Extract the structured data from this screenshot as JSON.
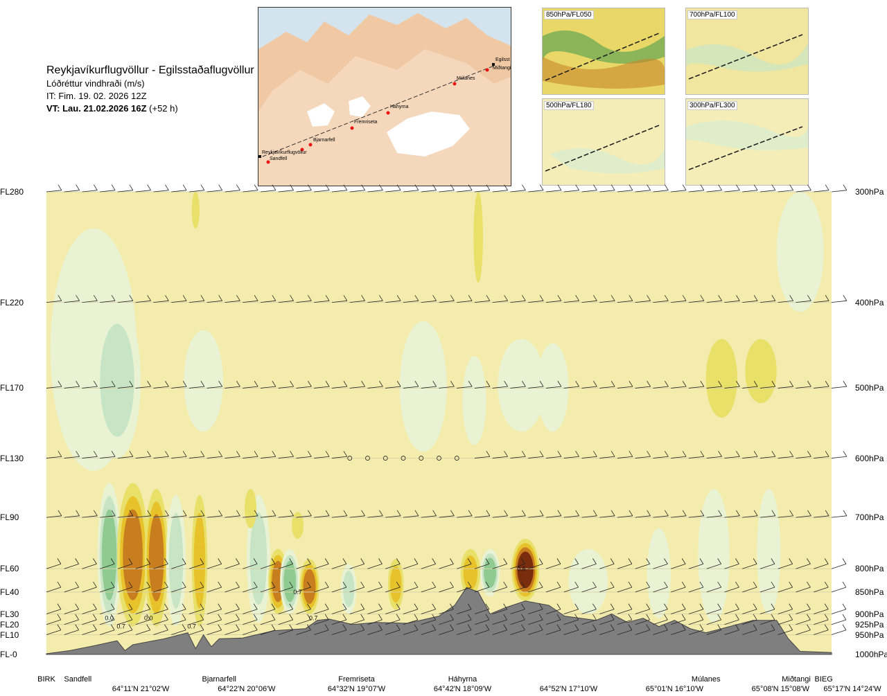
{
  "titles": {
    "line1": "Reykjavíkurflugvöllur - Egilsstaðaflugvöllur",
    "line2": "Lóðréttur vindhraði (m/s)",
    "line3": "IT: Fim. 19. 02. 2026 12Z",
    "line4_bold": "VT: Lau. 21.02.2026 16Z",
    "line4_rest": " (+52 h)"
  },
  "map": {
    "points": [
      "Reykjavíkurflugvöllur",
      "Sandfell",
      "Bjarnarfell",
      "Fremriseta",
      "Háhyrna",
      "Múlanes",
      "Miðtangi",
      "Egilsst"
    ]
  },
  "insets": [
    "850hPa/FL050",
    "700hPa/FL100",
    "500hPa/FL180",
    "300hPa/FL300"
  ],
  "chart_data": {
    "type": "heatmap",
    "title": "Lóðréttur vindhraði (m/s)",
    "levels": [
      {
        "fl": "FL280",
        "hpa": "300hPa",
        "p": 300
      },
      {
        "fl": "FL220",
        "hpa": "400hPa",
        "p": 400
      },
      {
        "fl": "FL170",
        "hpa": "500hPa",
        "p": 500
      },
      {
        "fl": "FL130",
        "hpa": "600hPa",
        "p": 600
      },
      {
        "fl": "FL90",
        "hpa": "700hPa",
        "p": 700
      },
      {
        "fl": "FL60",
        "hpa": "800hPa",
        "p": 800
      },
      {
        "fl": "FL40",
        "hpa": "850hPa",
        "p": 850
      },
      {
        "fl": "FL30",
        "hpa": "900hPa",
        "p": 900
      },
      {
        "fl": "FL20",
        "hpa": "925hPa",
        "p": 925
      },
      {
        "fl": "FL10",
        "hpa": "950hPa",
        "p": 950
      },
      {
        "fl": "FL-0",
        "hpa": "1000hPa",
        "p": 1000
      }
    ],
    "stations": [
      {
        "name": "BIRK",
        "d": 0.0
      },
      {
        "name": "Sandfell",
        "d": 0.04
      },
      {
        "name": "Bjarnarfell",
        "d": 0.22
      },
      {
        "name": "Fremriseta",
        "d": 0.395
      },
      {
        "name": "Háhyrna",
        "d": 0.53
      },
      {
        "name": "Múlanes",
        "d": 0.84
      },
      {
        "name": "Miðtangi",
        "d": 0.955
      },
      {
        "name": "BIEG",
        "d": 0.99
      }
    ],
    "coords": [
      {
        "label": "64°11'N 21°02'W",
        "d": 0.12
      },
      {
        "label": "64°22'N 20°06'W",
        "d": 0.255
      },
      {
        "label": "64°32'N 19°07'W",
        "d": 0.395
      },
      {
        "label": "64°42'N 18°09'W",
        "d": 0.53
      },
      {
        "label": "64°52'N 17°10'W",
        "d": 0.665
      },
      {
        "label": "65°01'N 16°10'W",
        "d": 0.8
      },
      {
        "label": "65°08'N 15°08'W",
        "d": 0.935
      },
      {
        "label": "65°17'N 14°24'W",
        "d": 1.04
      }
    ],
    "cell_labels": [
      {
        "text": "0.7",
        "d": 0.095,
        "p": 935
      },
      {
        "text": "0.0",
        "d": 0.08,
        "p": 915
      },
      {
        "text": "0.0",
        "d": 0.13,
        "p": 915
      },
      {
        "text": "0.7",
        "d": 0.185,
        "p": 935
      },
      {
        "text": "0.7",
        "d": 0.32,
        "p": 855
      },
      {
        "text": "0.7",
        "d": 0.34,
        "p": 915
      },
      {
        "text": "0.6",
        "d": 0.605,
        "p": 805
      }
    ],
    "terrain": [
      {
        "d": 0.0,
        "p": 998
      },
      {
        "d": 0.03,
        "p": 990
      },
      {
        "d": 0.06,
        "p": 978
      },
      {
        "d": 0.09,
        "p": 965
      },
      {
        "d": 0.1,
        "p": 990
      },
      {
        "d": 0.11,
        "p": 975
      },
      {
        "d": 0.15,
        "p": 960
      },
      {
        "d": 0.18,
        "p": 945
      },
      {
        "d": 0.19,
        "p": 985
      },
      {
        "d": 0.2,
        "p": 950
      },
      {
        "d": 0.21,
        "p": 980
      },
      {
        "d": 0.22,
        "p": 960
      },
      {
        "d": 0.25,
        "p": 958
      },
      {
        "d": 0.29,
        "p": 940
      },
      {
        "d": 0.33,
        "p": 935
      },
      {
        "d": 0.345,
        "p": 915
      },
      {
        "d": 0.36,
        "p": 912
      },
      {
        "d": 0.39,
        "p": 925
      },
      {
        "d": 0.42,
        "p": 920
      },
      {
        "d": 0.46,
        "p": 922
      },
      {
        "d": 0.5,
        "p": 905
      },
      {
        "d": 0.52,
        "p": 880
      },
      {
        "d": 0.535,
        "p": 840
      },
      {
        "d": 0.55,
        "p": 850
      },
      {
        "d": 0.565,
        "p": 900
      },
      {
        "d": 0.585,
        "p": 885
      },
      {
        "d": 0.61,
        "p": 870
      },
      {
        "d": 0.64,
        "p": 880
      },
      {
        "d": 0.66,
        "p": 905
      },
      {
        "d": 0.7,
        "p": 915
      },
      {
        "d": 0.72,
        "p": 900
      },
      {
        "d": 0.74,
        "p": 920
      },
      {
        "d": 0.76,
        "p": 910
      },
      {
        "d": 0.78,
        "p": 930
      },
      {
        "d": 0.8,
        "p": 915
      },
      {
        "d": 0.82,
        "p": 935
      },
      {
        "d": 0.84,
        "p": 945
      },
      {
        "d": 0.86,
        "p": 935
      },
      {
        "d": 0.88,
        "p": 925
      },
      {
        "d": 0.9,
        "p": 915
      },
      {
        "d": 0.93,
        "p": 915
      },
      {
        "d": 0.945,
        "p": 960
      },
      {
        "d": 0.96,
        "p": 992
      },
      {
        "d": 1.0,
        "p": 995
      }
    ],
    "calm_points": [
      0.38,
      0.4,
      0.42,
      0.44,
      0.46,
      0.48,
      0.5,
      0.52
    ],
    "colors": {
      "background": "#f3ecac",
      "sink_weak": "#e9f3d4",
      "sink": "#c7e5c5",
      "sink_mid": "#8fcb91",
      "sink_strong": "#2b8a3a",
      "rise_weak": "#e8e068",
      "rise": "#e8c22a",
      "rise_mid": "#c87d1e",
      "rise_strong": "#7a2d0c",
      "terrain": "#7f7f7f"
    }
  }
}
